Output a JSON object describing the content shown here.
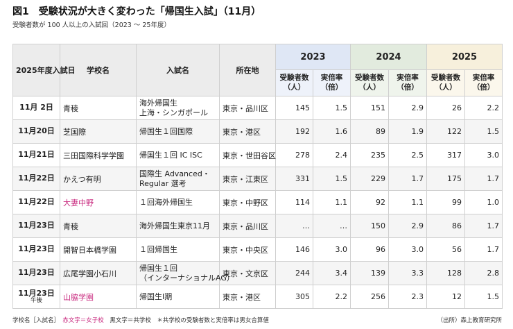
{
  "title": "図1　受験状況が大きく変わった「帰国生入試」（11月）",
  "subtitle": "受験者数が 100 人以上の入試回（2023 ～ 25年度）",
  "headers": {
    "date": "2025年度入試日",
    "school": "学校名",
    "exam": "入試名",
    "location": "所在地",
    "years": [
      "2023",
      "2024",
      "2025"
    ],
    "applicants": "受験者数（人）",
    "ratio": "実倍率（倍）"
  },
  "rows": [
    {
      "date": "11月  2日",
      "ampm": "",
      "school": "青稜",
      "girls": false,
      "exam": "海外帰国生\n上海・シンガポール",
      "location": "東京・品川区",
      "a2023": "145",
      "r2023": "1.5",
      "a2024": "151",
      "r2024": "2.9",
      "a2025": "26",
      "r2025": "2.2"
    },
    {
      "date": "11月20日",
      "ampm": "",
      "school": "芝国際",
      "girls": false,
      "exam": "帰国生１回国際",
      "location": "東京・港区",
      "a2023": "192",
      "r2023": "1.6",
      "a2024": "89",
      "r2024": "1.9",
      "a2025": "122",
      "r2025": "1.5"
    },
    {
      "date": "11月21日",
      "ampm": "",
      "school": "三田国際科学学園",
      "girls": false,
      "exam": "帰国生１回 IC ISC",
      "location": "東京・世田谷区",
      "a2023": "278",
      "r2023": "2.4",
      "a2024": "235",
      "r2024": "2.5",
      "a2025": "317",
      "r2025": "3.0"
    },
    {
      "date": "11月22日",
      "ampm": "",
      "school": "かえつ有明",
      "girls": false,
      "exam": "国際生 Advanced・\nRegular 選考",
      "location": "東京・江東区",
      "a2023": "331",
      "r2023": "1.5",
      "a2024": "229",
      "r2024": "1.7",
      "a2025": "175",
      "r2025": "1.7"
    },
    {
      "date": "11月22日",
      "ampm": "",
      "school": "大妻中野",
      "girls": true,
      "exam": "１回海外帰国生",
      "location": "東京・中野区",
      "a2023": "114",
      "r2023": "1.1",
      "a2024": "92",
      "r2024": "1.1",
      "a2025": "99",
      "r2025": "1.0"
    },
    {
      "date": "11月23日",
      "ampm": "",
      "school": "青稜",
      "girls": false,
      "exam": "海外帰国生東京11月",
      "location": "東京・品川区",
      "a2023": "…",
      "r2023": "…",
      "a2024": "150",
      "r2024": "2.9",
      "a2025": "86",
      "r2025": "1.7"
    },
    {
      "date": "11月23日",
      "ampm": "",
      "school": "開智日本橋学園",
      "girls": false,
      "exam": "１回帰国生",
      "location": "東京・中央区",
      "a2023": "146",
      "r2023": "3.0",
      "a2024": "96",
      "r2024": "3.0",
      "a2025": "56",
      "r2025": "1.7"
    },
    {
      "date": "11月23日",
      "ampm": "",
      "school": "広尾学園小石川",
      "girls": false,
      "exam": "帰国生１回\n（インターナショナルAG）",
      "location": "東京・文京区",
      "a2023": "244",
      "r2023": "3.4",
      "a2024": "139",
      "r2024": "3.3",
      "a2025": "128",
      "r2025": "2.8"
    },
    {
      "date": "11月23日",
      "ampm": "午後",
      "school": "山脇学園",
      "girls": true,
      "exam": "帰国生Ⅰ期",
      "location": "東京・港区",
      "a2023": "305",
      "r2023": "2.2",
      "a2024": "256",
      "r2024": "2.3",
      "a2025": "12",
      "r2025": "1.5"
    }
  ],
  "footer": {
    "legend_prefix": "学校名［入試名］",
    "legend_girls": "赤文字＝女子校",
    "legend_coed": "黒文字＝共学校",
    "note": "＊共学校の受験者数と実倍率は男女合算値",
    "source": "（出所）森上教育研究所"
  }
}
